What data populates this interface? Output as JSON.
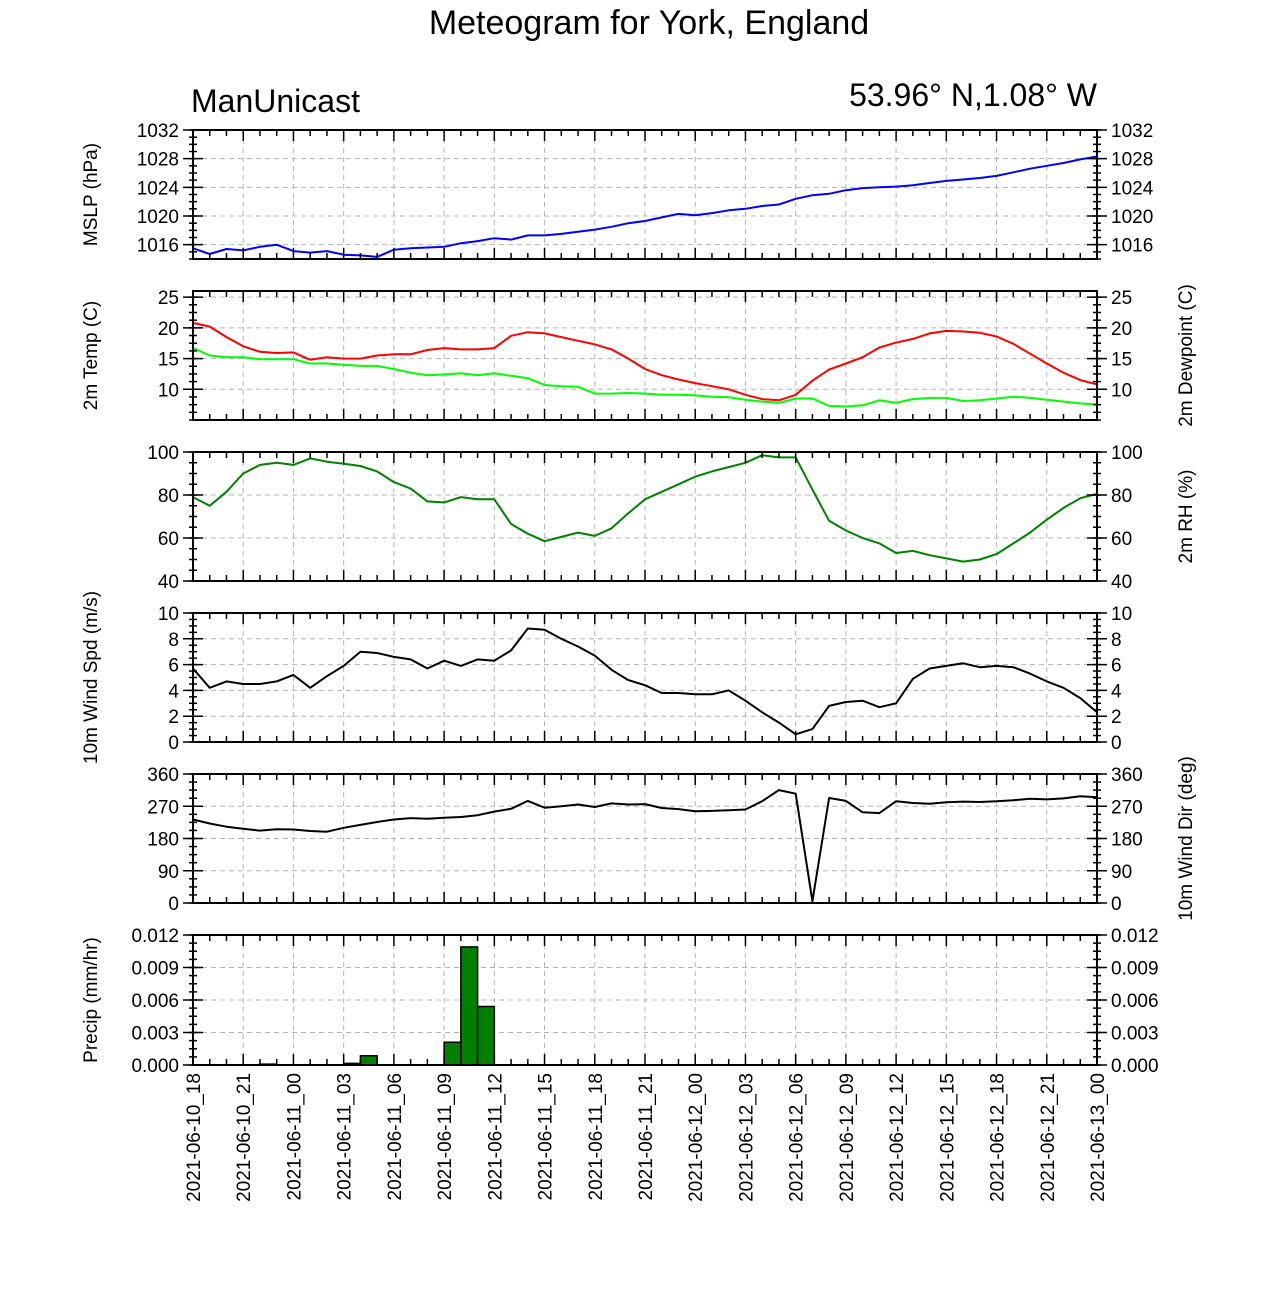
{
  "title": "Meteogram for York, England",
  "model_label": "ManUnicast",
  "location_label": "53.96° N,1.08° W",
  "x_tick_labels": [
    "2021-06-10_18",
    "2021-06-10_21",
    "2021-06-11_00",
    "2021-06-11_03",
    "2021-06-11_06",
    "2021-06-11_09",
    "2021-06-11_12",
    "2021-06-11_15",
    "2021-06-11_18",
    "2021-06-11_21",
    "2021-06-12_00",
    "2021-06-12_03",
    "2021-06-12_06",
    "2021-06-12_09",
    "2021-06-12_12",
    "2021-06-12_15",
    "2021-06-12_18",
    "2021-06-12_21",
    "2021-06-13_00"
  ],
  "chart_data": [
    {
      "type": "line",
      "ylabel": "MSLP (hPa)",
      "ylabel_right": "",
      "ylim": [
        1014,
        1032
      ],
      "yticks": [
        1016,
        1020,
        1024,
        1028,
        1032
      ],
      "ytick_labels": [
        "1016",
        "1020",
        "1024",
        "1028",
        "1032"
      ],
      "right_tick_labels": true,
      "x_hours": [
        0,
        1,
        2,
        3,
        4,
        5,
        6,
        7,
        8,
        9,
        10,
        11,
        12,
        13,
        14,
        15,
        16,
        17,
        18,
        19,
        20,
        21,
        22,
        23,
        24,
        25,
        26,
        27,
        28,
        29,
        30,
        31,
        32,
        33,
        34,
        35,
        36,
        37,
        38,
        39,
        40,
        41,
        42,
        43,
        44,
        45,
        46,
        47,
        48,
        49,
        50,
        51,
        52,
        53,
        54
      ],
      "series": [
        {
          "name": "",
          "color": "#0000ff",
          "values": [
            1015.5,
            1014.7,
            1015.4,
            1015.2,
            1015.7,
            1016.0,
            1015.1,
            1014.9,
            1015.1,
            1014.6,
            1014.5,
            1014.3,
            1015.3,
            1015.5,
            1015.6,
            1015.7,
            1016.2,
            1016.5,
            1016.9,
            1016.7,
            1017.3,
            1017.3,
            1017.5,
            1017.8,
            1018.1,
            1018.5,
            1019.0,
            1019.3,
            1019.8,
            1020.3,
            1020.1,
            1020.4,
            1020.8,
            1021.0,
            1021.4,
            1021.6,
            1022.4,
            1022.9,
            1023.1,
            1023.6,
            1023.9,
            1024.0,
            1024.1,
            1024.3,
            1024.6,
            1024.9,
            1025.1,
            1025.3,
            1025.6,
            1026.1,
            1026.6,
            1027.0,
            1027.4,
            1027.9,
            1028.3
          ]
        }
      ]
    },
    {
      "type": "line",
      "ylabel": "2m Temp (C)",
      "ylabel_right": "2m Dewpoint (C)",
      "ylim": [
        5,
        26
      ],
      "yticks": [
        10,
        15,
        20,
        25
      ],
      "ytick_labels": [
        "10",
        "15",
        "20",
        "25"
      ],
      "right_tick_labels": true,
      "x_hours": [
        0,
        1,
        2,
        3,
        4,
        5,
        6,
        7,
        8,
        9,
        10,
        11,
        12,
        13,
        14,
        15,
        16,
        17,
        18,
        19,
        20,
        21,
        22,
        23,
        24,
        25,
        26,
        27,
        28,
        29,
        30,
        31,
        32,
        33,
        34,
        35,
        36,
        37,
        38,
        39,
        40,
        41,
        42,
        43,
        44,
        45,
        46,
        47,
        48,
        49,
        50,
        51,
        52,
        53,
        54
      ],
      "series": [
        {
          "name": "",
          "color": "#ff0000",
          "values": [
            20.8,
            20.2,
            18.5,
            17.0,
            16.1,
            15.9,
            16.0,
            14.8,
            15.2,
            15.0,
            15.0,
            15.5,
            15.7,
            15.7,
            16.4,
            16.7,
            16.5,
            16.5,
            16.7,
            18.7,
            19.3,
            19.1,
            18.5,
            17.9,
            17.3,
            16.5,
            15.0,
            13.3,
            12.3,
            11.6,
            11.0,
            10.5,
            10.0,
            9.1,
            8.4,
            8.2,
            9.1,
            11.4,
            13.2,
            14.2,
            15.2,
            16.8,
            17.6,
            18.2,
            19.1,
            19.5,
            19.4,
            19.2,
            18.6,
            17.4,
            15.8,
            14.2,
            12.7,
            11.5,
            10.8
          ]
        },
        {
          "name": "",
          "color": "#00ff00",
          "values": [
            16.7,
            15.5,
            15.2,
            15.2,
            14.9,
            14.9,
            14.9,
            14.2,
            14.2,
            14.0,
            13.8,
            13.8,
            13.3,
            12.7,
            12.3,
            12.4,
            12.6,
            12.3,
            12.6,
            12.2,
            11.8,
            10.7,
            10.5,
            10.4,
            9.3,
            9.3,
            9.4,
            9.3,
            9.1,
            9.1,
            9.0,
            8.8,
            8.7,
            8.3,
            8.0,
            7.8,
            8.5,
            8.5,
            7.3,
            7.2,
            7.4,
            8.2,
            7.8,
            8.4,
            8.6,
            8.6,
            8.1,
            8.2,
            8.5,
            8.8,
            8.6,
            8.3,
            8.0,
            7.7,
            7.5
          ]
        }
      ]
    },
    {
      "type": "line",
      "ylabel": "",
      "ylabel_right": "2m RH (%)",
      "ylim": [
        40,
        100
      ],
      "yticks": [
        40,
        60,
        80,
        100
      ],
      "ytick_labels": [
        "40",
        "60",
        "80",
        "100"
      ],
      "right_tick_labels": true,
      "x_hours": [
        0,
        1,
        2,
        3,
        4,
        5,
        6,
        7,
        8,
        9,
        10,
        11,
        12,
        13,
        14,
        15,
        16,
        17,
        18,
        19,
        20,
        21,
        22,
        23,
        24,
        25,
        26,
        27,
        28,
        29,
        30,
        31,
        32,
        33,
        34,
        35,
        36,
        37,
        38,
        39,
        40,
        41,
        42,
        43,
        44,
        45,
        46,
        47,
        48,
        49,
        50,
        51,
        52,
        53,
        54
      ],
      "series": [
        {
          "name": "",
          "color": "#008000",
          "values": [
            79,
            75,
            81.5,
            90,
            94,
            95,
            94,
            97,
            95.5,
            94.5,
            93.5,
            91,
            86,
            83,
            77,
            76.5,
            79,
            78,
            78,
            66.5,
            62,
            58.5,
            60.5,
            62.5,
            61,
            64.5,
            71.5,
            78,
            81.5,
            85,
            88.5,
            91,
            93,
            95,
            98.5,
            97.5,
            97.5,
            82.5,
            68,
            63.5,
            60,
            57.5,
            53,
            54,
            52,
            50.5,
            49,
            50,
            52.5,
            57.5,
            62.5,
            68.5,
            74,
            78.5,
            80.5
          ]
        }
      ]
    },
    {
      "type": "line",
      "ylabel": "10m Wind Spd (m/s)",
      "ylabel_right": "",
      "ylim": [
        0,
        10
      ],
      "yticks": [
        0,
        2,
        4,
        6,
        8,
        10
      ],
      "ytick_labels": [
        "0",
        "2",
        "4",
        "6",
        "8",
        "10"
      ],
      "right_tick_labels": true,
      "x_hours": [
        0,
        1,
        2,
        3,
        4,
        5,
        6,
        7,
        8,
        9,
        10,
        11,
        12,
        13,
        14,
        15,
        16,
        17,
        18,
        19,
        20,
        21,
        22,
        23,
        24,
        25,
        26,
        27,
        28,
        29,
        30,
        31,
        32,
        33,
        34,
        35,
        36,
        37,
        38,
        39,
        40,
        41,
        42,
        43,
        44,
        45,
        46,
        47,
        48,
        49,
        50,
        51,
        52,
        53,
        54
      ],
      "series": [
        {
          "name": "",
          "color": "#000000",
          "values": [
            5.7,
            4.2,
            4.7,
            4.5,
            4.5,
            4.7,
            5.2,
            4.2,
            5.1,
            5.9,
            7.0,
            6.9,
            6.6,
            6.4,
            5.7,
            6.3,
            5.9,
            6.4,
            6.3,
            7.1,
            8.8,
            8.7,
            8.0,
            7.4,
            6.7,
            5.6,
            4.8,
            4.4,
            3.8,
            3.8,
            3.7,
            3.7,
            4.0,
            3.2,
            2.3,
            1.5,
            0.6,
            1.0,
            2.8,
            3.1,
            3.2,
            2.7,
            3.0,
            4.9,
            5.7,
            5.9,
            6.1,
            5.8,
            5.9,
            5.8,
            5.3,
            4.7,
            4.2,
            3.4,
            2.3
          ]
        }
      ]
    },
    {
      "type": "line",
      "ylabel": "",
      "ylabel_right": "10m Wind Dir (deg)",
      "ylim": [
        0,
        360
      ],
      "yticks": [
        0,
        90,
        180,
        270,
        360
      ],
      "ytick_labels": [
        "0",
        "90",
        "180",
        "270",
        "360"
      ],
      "right_tick_labels": true,
      "x_hours": [
        0,
        1,
        2,
        3,
        4,
        5,
        6,
        7,
        8,
        9,
        10,
        11,
        12,
        13,
        14,
        15,
        16,
        17,
        18,
        19,
        20,
        21,
        22,
        23,
        24,
        25,
        26,
        27,
        28,
        29,
        30,
        31,
        32,
        33,
        34,
        35,
        36,
        37,
        38,
        39,
        40,
        41,
        42,
        43,
        44,
        45,
        46,
        47,
        48,
        49,
        50,
        51,
        52,
        53,
        54
      ],
      "series": [
        {
          "name": "",
          "color": "#000000",
          "values": [
            233,
            222,
            213,
            207,
            202,
            206,
            205,
            201,
            199,
            210,
            218,
            226,
            233,
            237,
            235,
            238,
            240,
            245,
            255,
            263,
            285,
            266,
            270,
            275,
            268,
            278,
            275,
            276,
            265,
            262,
            256,
            257,
            259,
            261,
            284,
            315,
            305,
            5,
            293,
            285,
            253,
            251,
            284,
            279,
            277,
            281,
            283,
            282,
            284,
            287,
            291,
            289,
            292,
            298,
            295
          ]
        }
      ]
    },
    {
      "type": "bar",
      "ylabel": "Precip (mm/hr)",
      "ylabel_right": "",
      "ylim": [
        0,
        0.012
      ],
      "yticks": [
        0,
        0.003,
        0.006,
        0.009,
        0.012
      ],
      "ytick_labels": [
        "0.000",
        "0.003",
        "0.006",
        "0.009",
        "0.012"
      ],
      "right_tick_labels": true,
      "bar_color": "#008000",
      "bars": [
        {
          "hour": 4.5,
          "value": 8e-05
        },
        {
          "hour": 9.5,
          "value": 0.00015
        },
        {
          "hour": 10.5,
          "value": 0.00085
        },
        {
          "hour": 15.5,
          "value": 0.0021
        },
        {
          "hour": 16.5,
          "value": 0.0109
        },
        {
          "hour": 17.5,
          "value": 0.0054
        }
      ]
    }
  ]
}
